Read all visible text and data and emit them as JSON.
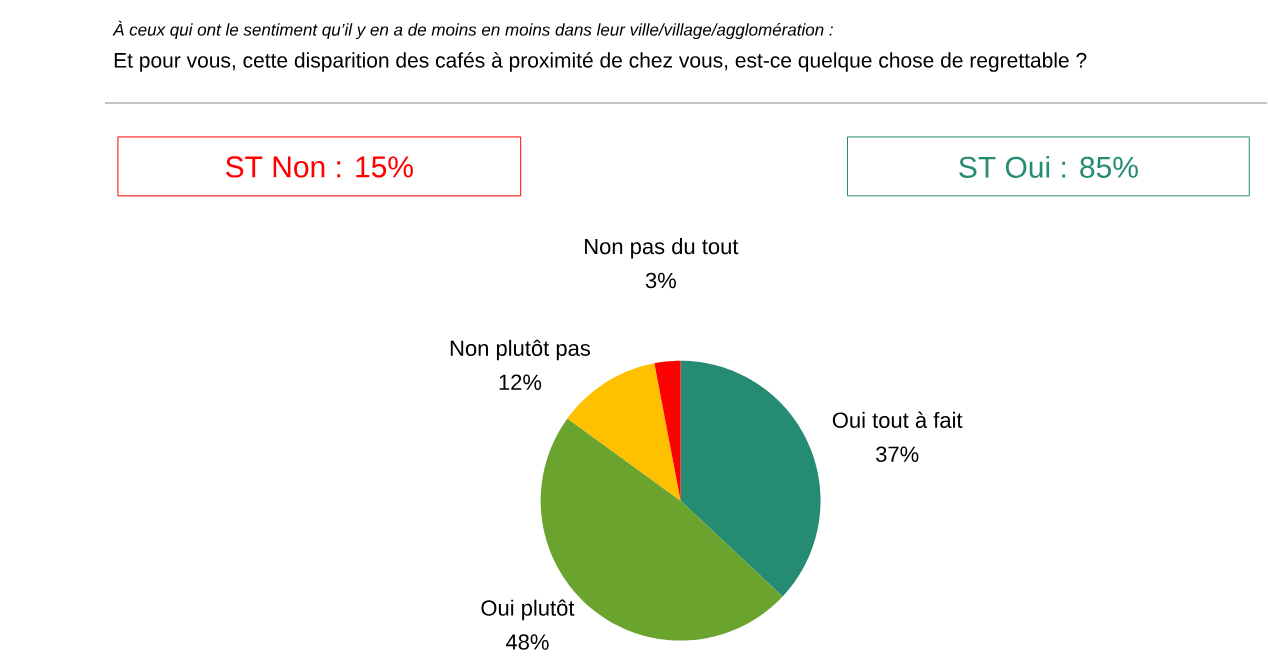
{
  "chart_data": {
    "type": "pie",
    "subtitle": "À ceux qui ont le sentiment qu’il y en a de moins en moins dans leur ville/village/agglomération :",
    "title": "Et pour vous, cette disparition des cafés à proximité de chez vous, est-ce quelque chose de regrettable ?",
    "annotations": [
      "ST Non : 15%",
      "ST Oui : 85%"
    ],
    "categories": [
      "Oui tout à fait",
      "Oui plutôt",
      "Non plutôt pas",
      "Non pas du tout"
    ],
    "values": [
      37,
      48,
      12,
      3
    ],
    "value_labels": [
      "37%",
      "48%",
      "12%",
      "3%"
    ],
    "colors": [
      "#268b73",
      "#6aa42f",
      "#ffc000",
      "#ff0000"
    ]
  }
}
